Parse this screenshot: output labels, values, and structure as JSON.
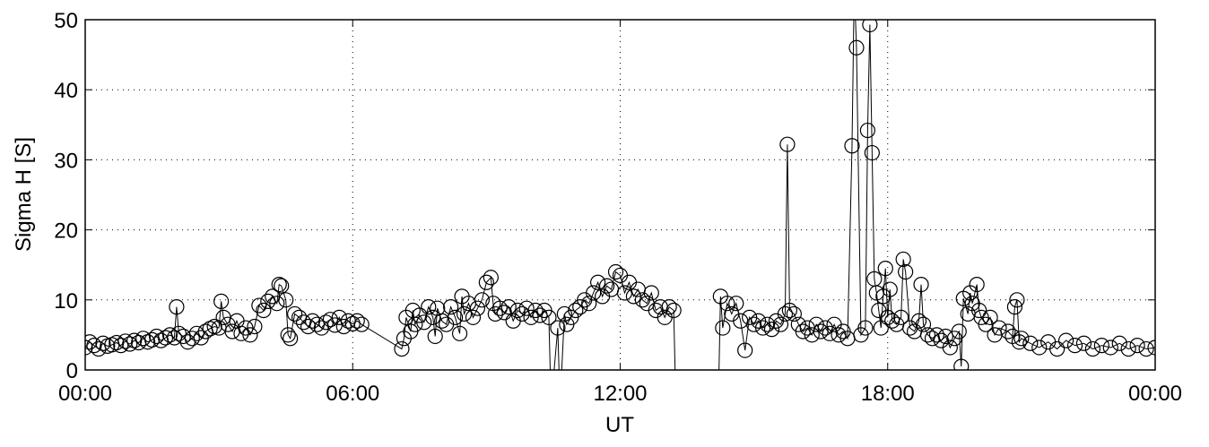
{
  "chart_data": {
    "type": "line",
    "x_label": "UT",
    "y_label": "Sigma H [S]",
    "color": "#000000",
    "grid": true,
    "markers": "circle",
    "xlim": [
      0,
      24
    ],
    "ylim": [
      0,
      50
    ],
    "xticks": [
      {
        "value": 0,
        "label": "00:00"
      },
      {
        "value": 6,
        "label": "06:00"
      },
      {
        "value": 12,
        "label": "12:00"
      },
      {
        "value": 18,
        "label": "18:00"
      },
      {
        "value": 24,
        "label": "00:00"
      }
    ],
    "yticks": [
      0,
      10,
      20,
      30,
      40,
      50
    ],
    "x": [
      0.0,
      0.1,
      0.2,
      0.3,
      0.4,
      0.5,
      0.6,
      0.7,
      0.8,
      0.9,
      1.0,
      1.1,
      1.2,
      1.3,
      1.4,
      1.5,
      1.6,
      1.7,
      1.8,
      1.9,
      2.0,
      2.05,
      2.1,
      2.2,
      2.3,
      2.4,
      2.5,
      2.6,
      2.7,
      2.8,
      2.9,
      3.0,
      3.05,
      3.1,
      3.2,
      3.3,
      3.4,
      3.5,
      3.6,
      3.7,
      3.8,
      3.9,
      4.0,
      4.1,
      4.2,
      4.3,
      4.35,
      4.4,
      4.5,
      4.55,
      4.6,
      4.7,
      4.8,
      4.9,
      5.0,
      5.1,
      5.2,
      5.3,
      5.4,
      5.5,
      5.6,
      5.7,
      5.8,
      5.9,
      6.0,
      6.1,
      6.2,
      7.1,
      7.15,
      7.2,
      7.3,
      7.35,
      7.4,
      7.5,
      7.6,
      7.7,
      7.8,
      7.85,
      7.9,
      8.0,
      8.1,
      8.2,
      8.3,
      8.4,
      8.45,
      8.5,
      8.6,
      8.7,
      8.8,
      8.9,
      9.0,
      9.1,
      9.15,
      9.2,
      9.3,
      9.4,
      9.5,
      9.6,
      9.7,
      9.8,
      9.9,
      10.0,
      10.1,
      10.2,
      10.3,
      10.4,
      10.45,
      10.6,
      10.65,
      10.75,
      10.8,
      10.9,
      11.0,
      11.1,
      11.2,
      11.3,
      11.4,
      11.5,
      11.6,
      11.7,
      11.8,
      11.9,
      12.0,
      12.1,
      12.2,
      12.3,
      12.4,
      12.5,
      12.6,
      12.7,
      12.8,
      12.9,
      13.0,
      13.1,
      13.2,
      13.25,
      14.2,
      14.25,
      14.3,
      14.4,
      14.5,
      14.6,
      14.7,
      14.8,
      14.9,
      15.0,
      15.1,
      15.2,
      15.3,
      15.4,
      15.5,
      15.6,
      15.7,
      15.75,
      15.8,
      15.9,
      16.0,
      16.1,
      16.2,
      16.3,
      16.4,
      16.5,
      16.6,
      16.7,
      16.8,
      16.9,
      17.0,
      17.1,
      17.2,
      17.25,
      17.3,
      17.4,
      17.5,
      17.55,
      17.6,
      17.65,
      17.7,
      17.75,
      17.8,
      17.85,
      17.9,
      17.95,
      18.0,
      18.05,
      18.1,
      18.2,
      18.3,
      18.35,
      18.4,
      18.5,
      18.6,
      18.7,
      18.75,
      18.8,
      18.9,
      19.0,
      19.1,
      19.2,
      19.3,
      19.4,
      19.5,
      19.6,
      19.65,
      19.7,
      19.8,
      19.85,
      19.9,
      20.0,
      20.05,
      20.1,
      20.2,
      20.3,
      20.4,
      20.5,
      20.7,
      20.8,
      20.85,
      20.9,
      20.95,
      21.0,
      21.2,
      21.4,
      21.6,
      21.8,
      22.0,
      22.2,
      22.4,
      22.6,
      22.8,
      23.0,
      23.2,
      23.4,
      23.6,
      23.8,
      24.0
    ],
    "values": [
      3.2,
      4.0,
      3.5,
      3.0,
      3.8,
      3.4,
      3.6,
      3.9,
      3.5,
      4.1,
      3.7,
      4.2,
      3.9,
      4.5,
      4.0,
      4.3,
      4.8,
      4.2,
      4.6,
      5.0,
      4.6,
      9.0,
      5.2,
      4.8,
      4.0,
      4.5,
      5.2,
      4.6,
      5.5,
      5.9,
      6.2,
      6.0,
      9.8,
      7.5,
      6.5,
      5.5,
      7.0,
      5.2,
      6.0,
      5.0,
      6.2,
      9.2,
      8.5,
      9.8,
      10.5,
      9.5,
      12.2,
      12.0,
      10.0,
      5.0,
      4.5,
      8.0,
      7.5,
      6.8,
      6.2,
      7.0,
      6.5,
      6.0,
      6.8,
      7.2,
      6.4,
      7.5,
      6.2,
      7.0,
      6.6,
      7.0,
      6.5,
      3.0,
      4.5,
      7.5,
      5.5,
      8.5,
      6.5,
      7.8,
      6.8,
      9.0,
      7.5,
      4.8,
      8.8,
      7.0,
      6.5,
      9.0,
      7.5,
      5.2,
      10.5,
      8.0,
      9.5,
      7.5,
      8.8,
      10.0,
      12.5,
      13.2,
      9.5,
      8.0,
      8.8,
      8.2,
      9.0,
      7.0,
      8.5,
      8.0,
      8.8,
      7.5,
      8.5,
      7.8,
      8.5,
      7.5,
      -5,
      6.0,
      -5,
      8.0,
      6.5,
      7.5,
      8.5,
      9.0,
      10.0,
      9.5,
      11.0,
      12.5,
      10.5,
      12.0,
      11.5,
      14.0,
      13.5,
      11.0,
      12.5,
      10.5,
      11.5,
      10.0,
      9.5,
      11.0,
      8.5,
      9.0,
      7.5,
      9.0,
      8.5,
      -5,
      -5,
      10.5,
      6.0,
      9.5,
      8.0,
      9.5,
      7.0,
      2.8,
      7.5,
      6.5,
      7.0,
      6.0,
      6.5,
      5.8,
      7.0,
      6.5,
      8.0,
      32.2,
      8.5,
      8.0,
      6.5,
      5.5,
      6.0,
      5.0,
      6.5,
      5.5,
      6.0,
      5.2,
      6.5,
      5.0,
      5.5,
      4.5,
      32.0,
      55,
      46.0,
      5.0,
      6.0,
      34.2,
      49.3,
      31.0,
      13.0,
      11.0,
      8.5,
      6.0,
      10.5,
      14.5,
      7.5,
      11.5,
      7.0,
      6.5,
      7.5,
      15.8,
      14.0,
      6.0,
      5.5,
      7.0,
      12.2,
      6.5,
      5.0,
      4.5,
      5.0,
      4.2,
      4.8,
      3.2,
      4.5,
      5.5,
      0.5,
      10.2,
      8.0,
      11.0,
      9.5,
      12.2,
      8.5,
      7.5,
      6.5,
      7.5,
      5.0,
      6.0,
      5.5,
      4.8,
      9.0,
      10.0,
      4.0,
      4.5,
      3.8,
      3.2,
      4.0,
      3.0,
      4.2,
      3.5,
      3.8,
      3.0,
      3.5,
      3.2,
      3.8,
      3.0,
      3.5,
      3.0,
      3.2
    ]
  }
}
